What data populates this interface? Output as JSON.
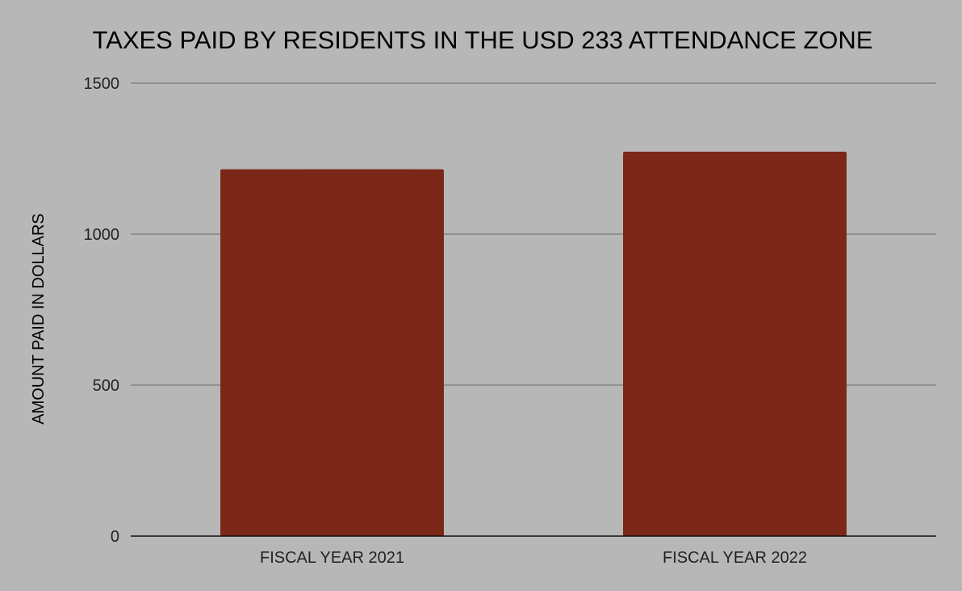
{
  "chart_data": {
    "type": "bar",
    "title": "TAXES PAID BY RESIDENTS IN THE USD 233 ATTENDANCE ZONE",
    "xlabel": "",
    "ylabel": "AMOUNT PAID IN DOLLARS",
    "categories": [
      "FISCAL YEAR 2021",
      "FISCAL YEAR 2022"
    ],
    "values": [
      1215,
      1273
    ],
    "ylim": [
      0,
      1500
    ],
    "yticks": [
      0,
      500,
      1000,
      1500
    ],
    "grid": true,
    "legend": "none",
    "bar_color": "#7b2818",
    "background": "#b7b7b7"
  }
}
